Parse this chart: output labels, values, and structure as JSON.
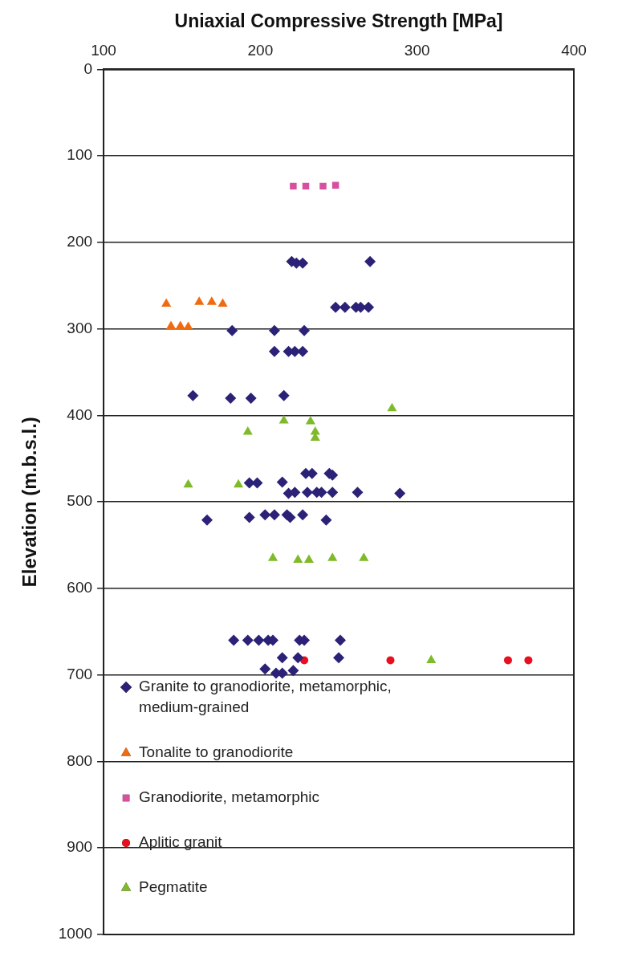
{
  "chart_data": {
    "type": "scatter",
    "xlabel": "Uniaxial Compressive Strength [MPa]",
    "ylabel": "Elevation (m.b.s.l.)",
    "xlim": [
      100,
      400
    ],
    "xticks": [
      100,
      200,
      300,
      400
    ],
    "ylim": [
      1000,
      0
    ],
    "yticks": [
      0,
      100,
      200,
      300,
      400,
      500,
      600,
      700,
      800,
      900,
      1000
    ],
    "grid": "y",
    "legend": "bottom left",
    "series": [
      {
        "name": "Granite to granodiorite, metamorphic, medium-grained",
        "color": "#2b2277",
        "marker": "diamond",
        "x": [
          220,
          223,
          227,
          270,
          248,
          254,
          261,
          264,
          269,
          182,
          209,
          228,
          209,
          218,
          222,
          227,
          157,
          181,
          194,
          215,
          193,
          198,
          214,
          229,
          233,
          244,
          246,
          218,
          222,
          230,
          236,
          239,
          246,
          262,
          289,
          166,
          193,
          203,
          209,
          217,
          219,
          227,
          242,
          183,
          192,
          199,
          205,
          208,
          225,
          228,
          251,
          214,
          224,
          250,
          203,
          210,
          214,
          221
        ],
        "values": [
          222,
          224,
          224,
          222,
          275,
          275,
          275,
          275,
          275,
          302,
          302,
          302,
          326,
          326,
          326,
          326,
          377,
          380,
          380,
          377,
          478,
          478,
          477,
          467,
          467,
          467,
          469,
          490,
          489,
          489,
          489,
          489,
          489,
          489,
          490,
          521,
          518,
          515,
          515,
          515,
          518,
          515,
          521,
          660,
          660,
          660,
          660,
          660,
          660,
          660,
          660,
          680,
          680,
          680,
          693,
          698,
          698,
          695
        ]
      },
      {
        "name": "Tonalite to granodiorite",
        "color": "#f06a0f",
        "marker": "triangle",
        "x": [
          140,
          161,
          169,
          176,
          143,
          149,
          154
        ],
        "values": [
          271,
          269,
          269,
          271,
          297,
          297,
          298
        ]
      },
      {
        "name": "Granodiorite, metamorphic",
        "color": "#d94fa0",
        "marker": "square",
        "x": [
          221,
          229,
          240,
          248
        ],
        "values": [
          135,
          135,
          135,
          134
        ]
      },
      {
        "name": "Aplitic granit",
        "color": "#e8101e",
        "marker": "circle",
        "x": [
          228,
          283,
          358,
          371
        ],
        "values": [
          683,
          683,
          683,
          683
        ]
      },
      {
        "name": "Pegmatite",
        "color": "#7fba2a",
        "marker": "triangle",
        "x": [
          192,
          215,
          232,
          235,
          235,
          284,
          154,
          186,
          208,
          224,
          231,
          246,
          266,
          309
        ],
        "values": [
          419,
          406,
          407,
          419,
          426,
          392,
          480,
          480,
          565,
          567,
          567,
          565,
          565,
          683
        ]
      }
    ]
  }
}
